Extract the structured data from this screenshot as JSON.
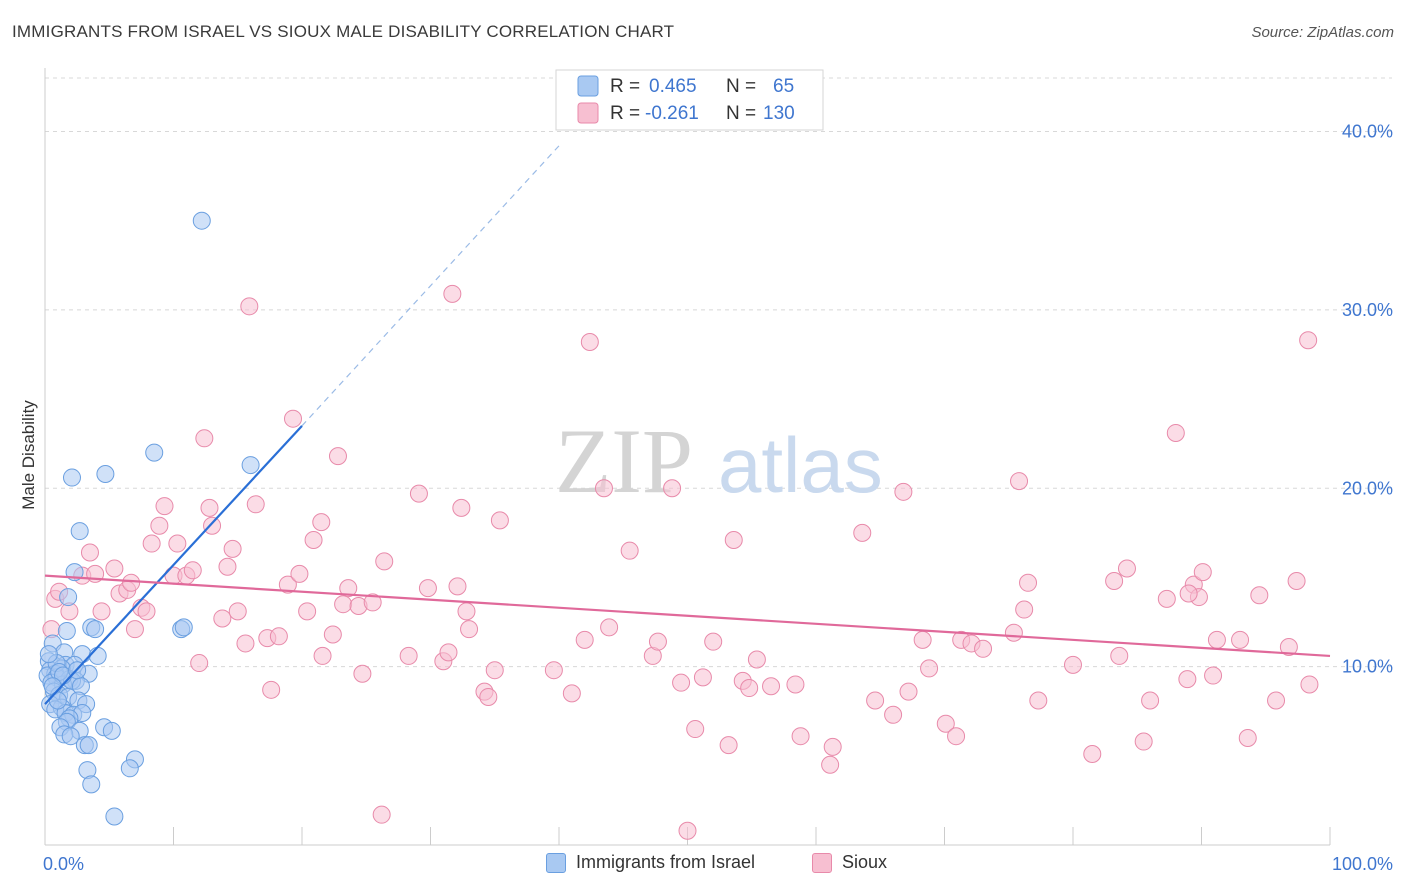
{
  "title": "IMMIGRANTS FROM ISRAEL VS SIOUX MALE DISABILITY CORRELATION CHART",
  "source": "Source: ZipAtlas.com",
  "watermark": {
    "part1": "ZIP",
    "part2": "atlas"
  },
  "colors": {
    "israel_fill": "#a9c9f2",
    "israel_stroke": "#6a9fe0",
    "israel_line": "#2a6fd6",
    "sioux_fill": "#f7bfd1",
    "sioux_stroke": "#e88aaa",
    "sioux_line": "#e0699a",
    "tick_label": "#3f76cf",
    "grid": "#d8d8d8"
  },
  "legend": {
    "rows": [
      {
        "r_label": "R =",
        "r_value": "0.465",
        "n_label": "N =",
        "n_value": "65"
      },
      {
        "r_label": "R =",
        "r_value": "-0.261",
        "n_label": "N =",
        "n_value": "130"
      }
    ]
  },
  "bottom_legend": {
    "israel": "Immigrants from Israel",
    "sioux": "Sioux"
  },
  "chart_data": {
    "type": "scatter",
    "title": "IMMIGRANTS FROM ISRAEL VS SIOUX MALE DISABILITY CORRELATION CHART",
    "xlabel": "",
    "ylabel": "Male Disability",
    "xlim": [
      0,
      100
    ],
    "ylim": [
      0,
      43
    ],
    "x_tick_labels": [
      "0.0%",
      "100.0%"
    ],
    "y_ticks": [
      10,
      20,
      30,
      40
    ],
    "y_tick_labels": [
      "10.0%",
      "20.0%",
      "30.0%",
      "40.0%"
    ],
    "grid": true,
    "series": [
      {
        "name": "Immigrants from Israel",
        "r": 0.465,
        "n": 65,
        "trend": {
          "x0": 0,
          "y0": 7.9,
          "x1": 20,
          "y1": 23.5,
          "dash_to_x": 40,
          "dash_to_y": 39.2
        },
        "points": [
          [
            12.2,
            35.0
          ],
          [
            8.5,
            22.0
          ],
          [
            16.0,
            21.3
          ],
          [
            4.7,
            20.8
          ],
          [
            2.1,
            20.6
          ],
          [
            2.7,
            17.6
          ],
          [
            2.3,
            15.3
          ],
          [
            1.8,
            13.9
          ],
          [
            3.6,
            12.2
          ],
          [
            3.9,
            12.1
          ],
          [
            1.7,
            12.0
          ],
          [
            10.6,
            12.1
          ],
          [
            10.8,
            12.2
          ],
          [
            0.6,
            11.3
          ],
          [
            1.5,
            10.8
          ],
          [
            2.9,
            10.7
          ],
          [
            4.1,
            10.6
          ],
          [
            0.3,
            10.3
          ],
          [
            1.6,
            10.1
          ],
          [
            2.3,
            10.1
          ],
          [
            0.4,
            9.8
          ],
          [
            1.3,
            9.9
          ],
          [
            0.8,
            9.6
          ],
          [
            3.4,
            9.6
          ],
          [
            0.2,
            9.5
          ],
          [
            0.9,
            9.4
          ],
          [
            1.9,
            9.3
          ],
          [
            2.4,
            9.2
          ],
          [
            0.5,
            9.1
          ],
          [
            1.4,
            9.0
          ],
          [
            2.1,
            9.2
          ],
          [
            2.8,
            8.9
          ],
          [
            0.7,
            8.6
          ],
          [
            1.1,
            8.4
          ],
          [
            1.8,
            8.3
          ],
          [
            2.6,
            8.1
          ],
          [
            0.4,
            7.9
          ],
          [
            1.3,
            7.7
          ],
          [
            3.2,
            7.9
          ],
          [
            0.8,
            7.6
          ],
          [
            1.6,
            7.4
          ],
          [
            2.2,
            7.3
          ],
          [
            2.9,
            7.4
          ],
          [
            1.9,
            7.1
          ],
          [
            1.7,
            6.9
          ],
          [
            1.2,
            6.6
          ],
          [
            4.6,
            6.6
          ],
          [
            5.2,
            6.4
          ],
          [
            2.7,
            6.4
          ],
          [
            1.5,
            6.2
          ],
          [
            2.0,
            6.1
          ],
          [
            3.1,
            5.6
          ],
          [
            3.4,
            5.6
          ],
          [
            7.0,
            4.8
          ],
          [
            6.6,
            4.3
          ],
          [
            3.3,
            4.2
          ],
          [
            3.6,
            3.4
          ],
          [
            5.4,
            1.6
          ],
          [
            0.9,
            10.2
          ],
          [
            1.1,
            9.7
          ],
          [
            1.4,
            9.5
          ],
          [
            0.6,
            8.9
          ],
          [
            2.5,
            9.8
          ],
          [
            1.0,
            8.1
          ],
          [
            0.3,
            10.7
          ]
        ]
      },
      {
        "name": "Sioux",
        "r": -0.261,
        "n": 130,
        "trend": {
          "x0": 0,
          "y0": 15.1,
          "x1": 100,
          "y1": 10.6
        },
        "points": [
          [
            0.5,
            12.1
          ],
          [
            0.8,
            13.8
          ],
          [
            1.1,
            14.2
          ],
          [
            1.9,
            13.1
          ],
          [
            2.9,
            15.1
          ],
          [
            3.5,
            16.4
          ],
          [
            3.9,
            15.2
          ],
          [
            4.4,
            13.1
          ],
          [
            5.4,
            15.5
          ],
          [
            5.8,
            14.1
          ],
          [
            6.4,
            14.3
          ],
          [
            6.7,
            14.7
          ],
          [
            7.0,
            12.1
          ],
          [
            7.5,
            13.3
          ],
          [
            7.9,
            13.1
          ],
          [
            8.3,
            16.9
          ],
          [
            8.9,
            17.9
          ],
          [
            9.3,
            19.0
          ],
          [
            10.0,
            15.1
          ],
          [
            10.3,
            16.9
          ],
          [
            11.0,
            15.1
          ],
          [
            11.5,
            15.4
          ],
          [
            12.0,
            10.2
          ],
          [
            12.4,
            22.8
          ],
          [
            12.8,
            18.9
          ],
          [
            13.0,
            17.9
          ],
          [
            13.8,
            12.7
          ],
          [
            14.2,
            15.6
          ],
          [
            14.6,
            16.6
          ],
          [
            15.0,
            13.1
          ],
          [
            15.6,
            11.3
          ],
          [
            15.9,
            30.2
          ],
          [
            16.4,
            19.1
          ],
          [
            17.3,
            11.6
          ],
          [
            17.6,
            8.7
          ],
          [
            18.2,
            11.7
          ],
          [
            18.9,
            14.6
          ],
          [
            19.3,
            23.9
          ],
          [
            19.8,
            15.2
          ],
          [
            20.4,
            13.1
          ],
          [
            20.9,
            17.1
          ],
          [
            21.5,
            18.1
          ],
          [
            21.6,
            10.6
          ],
          [
            22.4,
            11.8
          ],
          [
            22.8,
            21.8
          ],
          [
            23.2,
            13.5
          ],
          [
            23.6,
            14.4
          ],
          [
            24.4,
            13.4
          ],
          [
            24.7,
            9.6
          ],
          [
            25.5,
            13.6
          ],
          [
            26.4,
            15.9
          ],
          [
            26.2,
            1.7
          ],
          [
            28.3,
            10.6
          ],
          [
            29.1,
            19.7
          ],
          [
            29.8,
            14.4
          ],
          [
            31.0,
            10.3
          ],
          [
            31.4,
            10.8
          ],
          [
            31.7,
            30.9
          ],
          [
            32.1,
            14.5
          ],
          [
            32.4,
            18.9
          ],
          [
            32.8,
            13.1
          ],
          [
            33.0,
            12.1
          ],
          [
            34.2,
            8.6
          ],
          [
            34.5,
            8.3
          ],
          [
            35.0,
            9.8
          ],
          [
            35.4,
            18.2
          ],
          [
            39.6,
            9.8
          ],
          [
            41.0,
            8.5
          ],
          [
            42.0,
            11.5
          ],
          [
            42.4,
            28.2
          ],
          [
            43.5,
            20.0
          ],
          [
            43.9,
            12.2
          ],
          [
            45.5,
            16.5
          ],
          [
            47.3,
            10.6
          ],
          [
            47.7,
            11.4
          ],
          [
            48.8,
            20.0
          ],
          [
            49.5,
            9.1
          ],
          [
            50.0,
            0.8
          ],
          [
            50.6,
            6.5
          ],
          [
            51.2,
            9.4
          ],
          [
            52.0,
            11.4
          ],
          [
            53.2,
            5.6
          ],
          [
            53.6,
            17.1
          ],
          [
            54.3,
            9.2
          ],
          [
            54.8,
            8.8
          ],
          [
            55.4,
            10.4
          ],
          [
            56.5,
            8.9
          ],
          [
            58.4,
            9.0
          ],
          [
            58.8,
            6.1
          ],
          [
            61.1,
            4.5
          ],
          [
            61.3,
            5.5
          ],
          [
            63.6,
            17.5
          ],
          [
            64.6,
            8.1
          ],
          [
            66.0,
            7.3
          ],
          [
            66.8,
            19.8
          ],
          [
            67.2,
            8.6
          ],
          [
            68.3,
            11.5
          ],
          [
            68.8,
            9.9
          ],
          [
            70.1,
            6.8
          ],
          [
            70.9,
            6.1
          ],
          [
            71.3,
            11.5
          ],
          [
            72.1,
            11.3
          ],
          [
            73.0,
            11.0
          ],
          [
            75.4,
            11.9
          ],
          [
            75.8,
            20.4
          ],
          [
            76.2,
            13.2
          ],
          [
            76.5,
            14.7
          ],
          [
            77.3,
            8.1
          ],
          [
            80.0,
            10.1
          ],
          [
            81.5,
            5.1
          ],
          [
            83.2,
            14.8
          ],
          [
            83.6,
            10.6
          ],
          [
            84.2,
            15.5
          ],
          [
            85.5,
            5.8
          ],
          [
            86.0,
            8.1
          ],
          [
            87.3,
            13.8
          ],
          [
            88.0,
            23.1
          ],
          [
            88.9,
            9.3
          ],
          [
            89.4,
            14.6
          ],
          [
            89.8,
            13.9
          ],
          [
            90.1,
            15.3
          ],
          [
            90.9,
            9.5
          ],
          [
            91.2,
            11.5
          ],
          [
            93.0,
            11.5
          ],
          [
            93.6,
            6.0
          ],
          [
            94.5,
            14.0
          ],
          [
            95.8,
            8.1
          ],
          [
            96.8,
            11.1
          ],
          [
            97.4,
            14.8
          ],
          [
            98.3,
            28.3
          ],
          [
            98.4,
            9.0
          ],
          [
            89.0,
            14.1
          ]
        ]
      }
    ]
  }
}
